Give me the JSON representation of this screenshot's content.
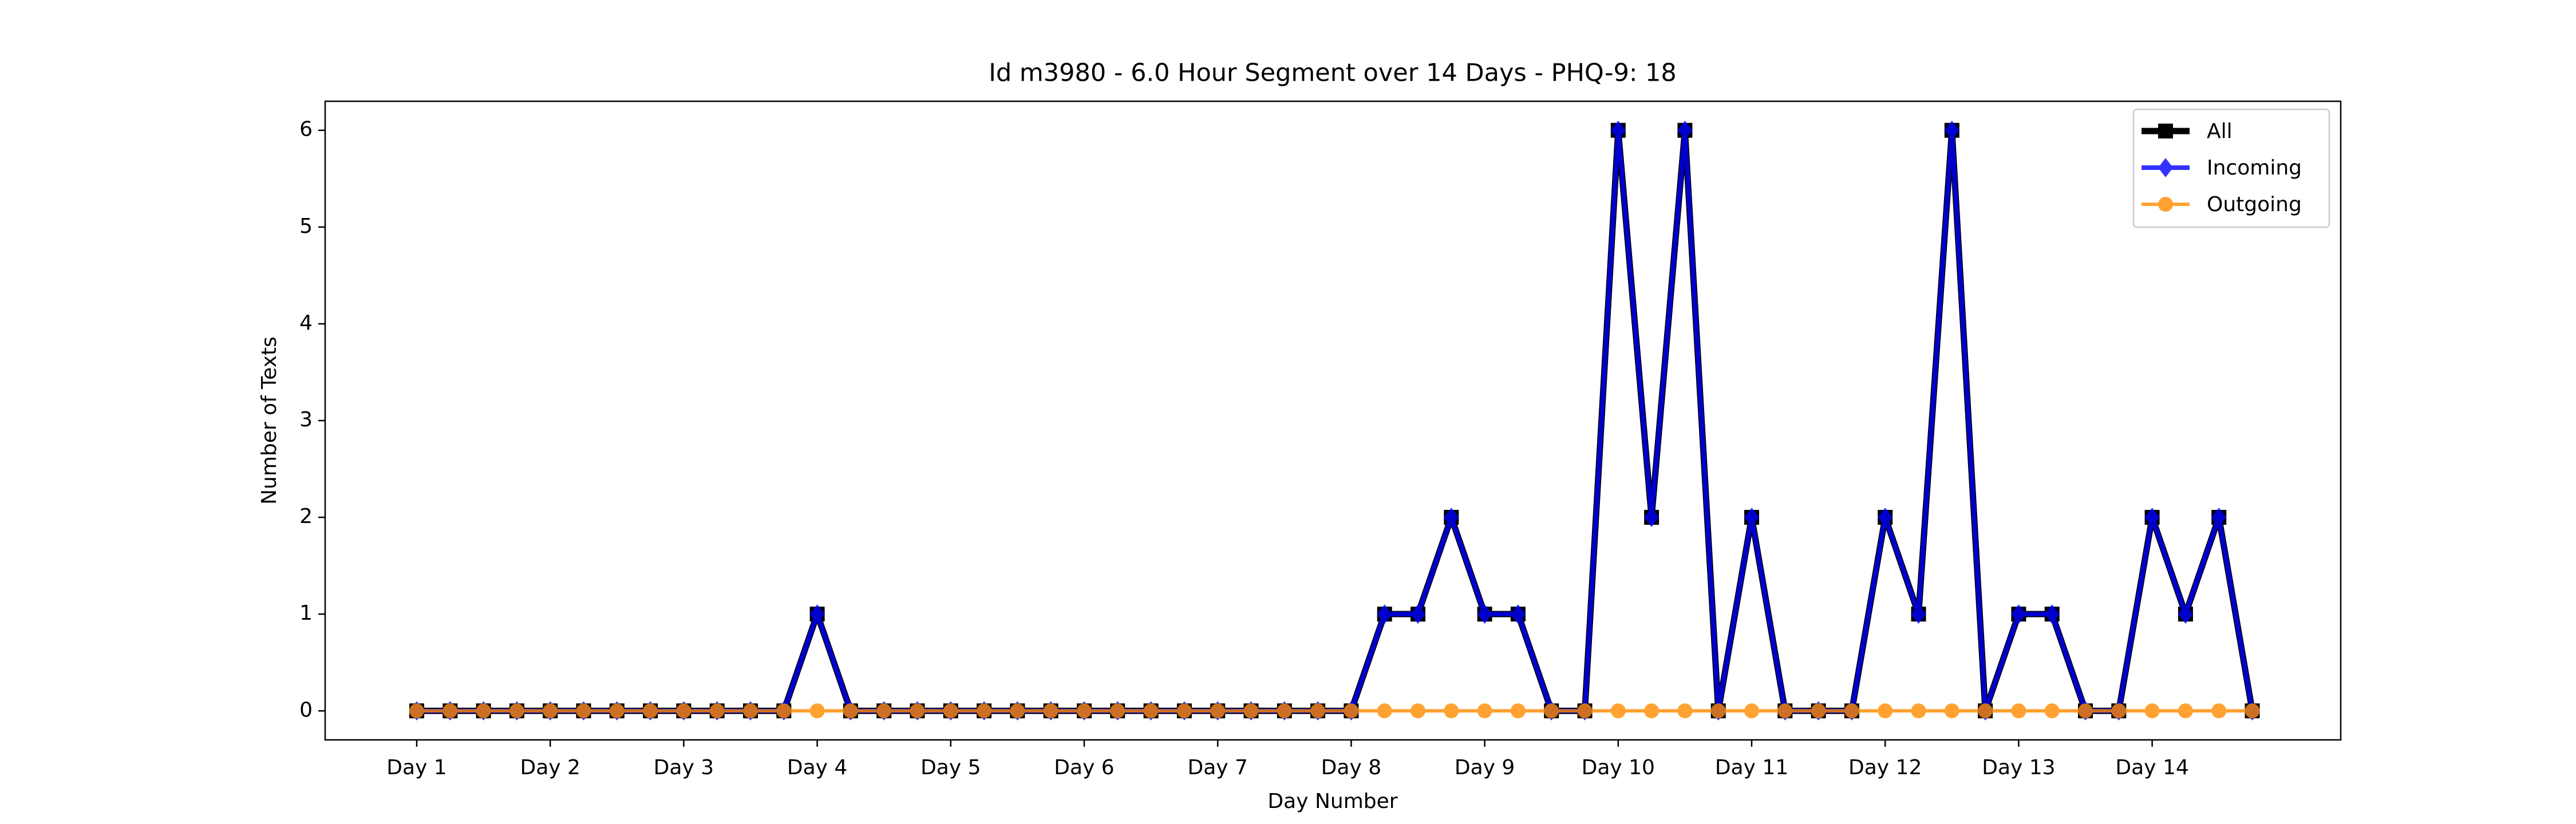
{
  "chart_data": {
    "type": "line",
    "title": "Id m3980 - 6.0 Hour Segment over 14 Days - PHQ-9: 18",
    "x_label": "Day Number",
    "y_label": "Number of Texts",
    "categories": [
      "Day 1",
      null,
      null,
      null,
      "Day 2",
      null,
      null,
      null,
      "Day 3",
      null,
      null,
      null,
      "Day 4",
      null,
      null,
      null,
      "Day 5",
      null,
      null,
      null,
      "Day 6",
      null,
      null,
      null,
      "Day 7",
      null,
      null,
      null,
      "Day 8",
      null,
      null,
      null,
      "Day 9",
      null,
      null,
      null,
      "Day 10",
      null,
      null,
      null,
      "Day 11",
      null,
      null,
      null,
      "Day 12",
      null,
      null,
      null,
      "Day 13",
      null,
      null,
      null,
      "Day 14",
      null,
      null,
      null
    ],
    "series": [
      {
        "name": "All",
        "color": "#000000",
        "marker": "square",
        "values": [
          0,
          0,
          0,
          0,
          0,
          0,
          0,
          0,
          0,
          0,
          0,
          0,
          1,
          0,
          0,
          0,
          0,
          0,
          0,
          0,
          0,
          0,
          0,
          0,
          0,
          0,
          0,
          0,
          0,
          1,
          1,
          2,
          1,
          1,
          0,
          0,
          6,
          2,
          6,
          0,
          2,
          0,
          0,
          0,
          2,
          1,
          6,
          0,
          1,
          1,
          0,
          0,
          2,
          1,
          2,
          0
        ]
      },
      {
        "name": "Incoming",
        "color": "#0000ff",
        "marker": "diamond",
        "values": [
          0,
          0,
          0,
          0,
          0,
          0,
          0,
          0,
          0,
          0,
          0,
          0,
          1,
          0,
          0,
          0,
          0,
          0,
          0,
          0,
          0,
          0,
          0,
          0,
          0,
          0,
          0,
          0,
          0,
          1,
          1,
          2,
          1,
          1,
          0,
          0,
          6,
          2,
          6,
          0,
          2,
          0,
          0,
          0,
          2,
          1,
          6,
          0,
          1,
          1,
          0,
          0,
          2,
          1,
          2,
          0
        ]
      },
      {
        "name": "Outgoing",
        "color": "#ff8c00",
        "marker": "circle",
        "values": [
          0,
          0,
          0,
          0,
          0,
          0,
          0,
          0,
          0,
          0,
          0,
          0,
          0,
          0,
          0,
          0,
          0,
          0,
          0,
          0,
          0,
          0,
          0,
          0,
          0,
          0,
          0,
          0,
          0,
          0,
          0,
          0,
          0,
          0,
          0,
          0,
          0,
          0,
          0,
          0,
          0,
          0,
          0,
          0,
          0,
          0,
          0,
          0,
          0,
          0,
          0,
          0,
          0,
          0,
          0,
          0
        ]
      }
    ],
    "ylim": [
      -0.3,
      6.3
    ],
    "yticks": [
      0,
      1,
      2,
      3,
      4,
      5,
      6
    ],
    "grid": false,
    "legend": "upper right"
  }
}
